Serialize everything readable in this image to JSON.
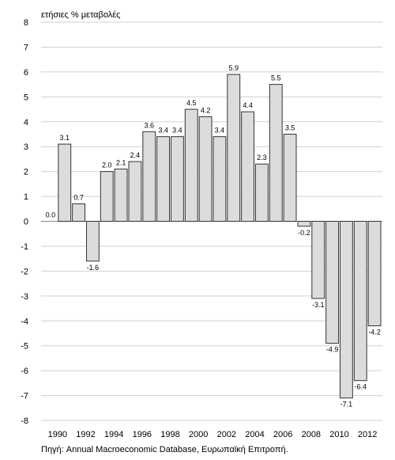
{
  "chart_data": {
    "type": "bar",
    "ylabel": "ετήσιες % μεταβολές",
    "ylim": [
      -8,
      8
    ],
    "yticks": [
      8,
      7,
      6,
      5,
      4,
      3,
      2,
      1,
      0,
      -1,
      -2,
      -3,
      -4,
      -5,
      -6,
      -7,
      -8
    ],
    "categories": [
      "1990",
      "1991",
      "1992",
      "1993",
      "1994",
      "1995",
      "1996",
      "1997",
      "1998",
      "1999",
      "2000",
      "2001",
      "2002",
      "2003",
      "2004",
      "2005",
      "2006",
      "2007",
      "2008",
      "2009",
      "2010",
      "2011",
      "2012",
      "2013"
    ],
    "xtick_labels": [
      "1990",
      "1992",
      "1994",
      "1996",
      "1998",
      "2000",
      "2002",
      "2004",
      "2006",
      "2008",
      "2010",
      "2012"
    ],
    "values": [
      0.0,
      3.1,
      0.7,
      -1.6,
      2.0,
      2.1,
      2.4,
      3.6,
      3.4,
      3.4,
      4.5,
      4.2,
      3.4,
      5.9,
      4.4,
      2.3,
      5.5,
      3.5,
      -0.2,
      -3.1,
      -4.9,
      -7.1,
      -6.4,
      -4.2
    ],
    "value_labels": [
      "0.0",
      "3.1",
      "0.7",
      "-1.6",
      "2.0",
      "2.1",
      "2.4",
      "3.6",
      "3.4",
      "3.4",
      "4.5",
      "4.2",
      "3.4",
      "5.9",
      "4.4",
      "2.3",
      "5.5",
      "3.5",
      "-0.2",
      "-3.1",
      "-4.9",
      "-7.1",
      "-6.4",
      "-4.2"
    ],
    "bar_color": "#dcdcdc",
    "bar_edge_color": "#333333",
    "grid_color": "#d0d0d0",
    "grid": "horizontal"
  },
  "source_note": "Πηγή: Annual Macroeconomic Database, Ευρωπαϊκή Επιτροπή."
}
